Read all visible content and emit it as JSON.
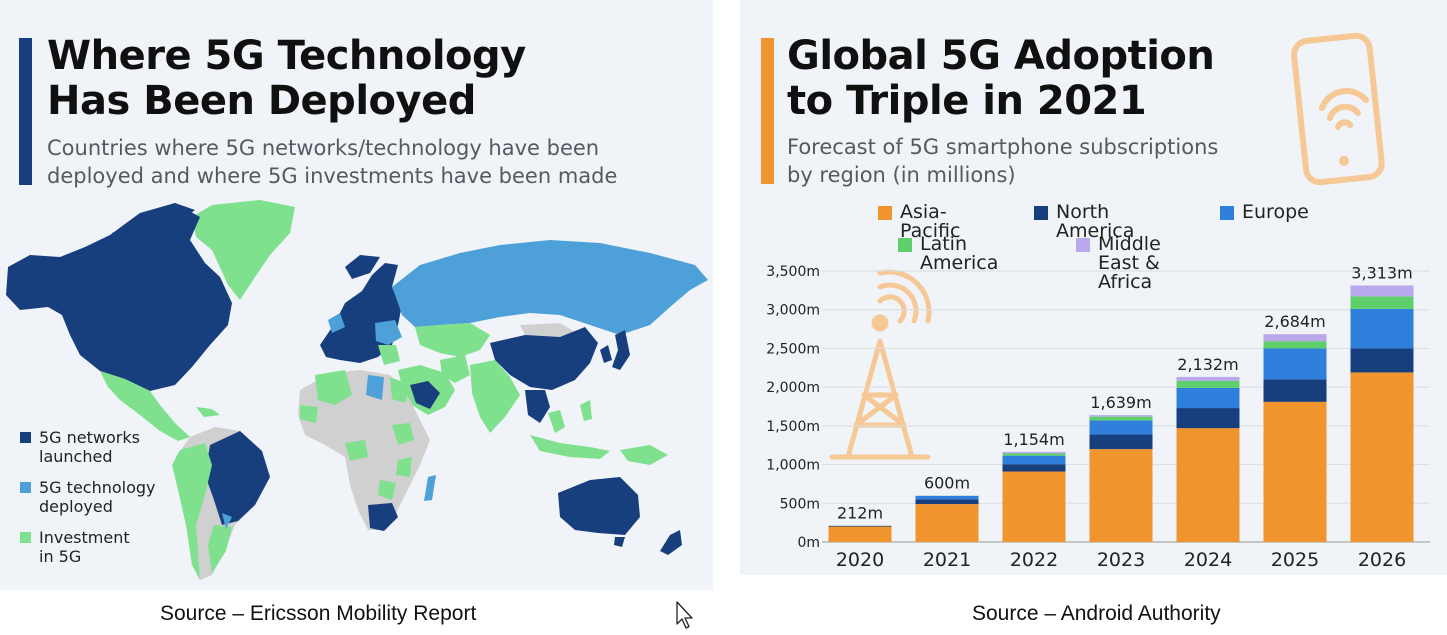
{
  "left_infographic": {
    "title_line1": "Where 5G Technology",
    "title_line2": "Has Been Deployed",
    "subtitle_line1": "Countries where 5G networks/technology have been",
    "subtitle_line2": "deployed and where 5G investments have been made",
    "accent_color": "#173f7e",
    "legend": [
      {
        "label": "5G networks launched",
        "color": "#173f7e"
      },
      {
        "label": "5G technology deployed",
        "color": "#4ea1d8"
      },
      {
        "label": "Investment in 5G",
        "color": "#7fe08e"
      }
    ],
    "source": "Source – Ericsson Mobility Report"
  },
  "right_infographic": {
    "title_line1": "Global 5G Adoption",
    "title_line2": "to Triple in 2021",
    "subtitle_line1": "Forecast of 5G smartphone subscriptions",
    "subtitle_line2": "by region (in millions)",
    "accent_color": "#f0952e",
    "source": "Source – Android Authority"
  },
  "chart_data": {
    "type": "bar",
    "stacked": true,
    "categories": [
      "2020",
      "2021",
      "2022",
      "2023",
      "2024",
      "2025",
      "2026"
    ],
    "series": [
      {
        "name": "Asia-Pacific",
        "color": "#f0952e",
        "values": [
          200,
          490,
          910,
          1200,
          1470,
          1810,
          2190
        ]
      },
      {
        "name": "North America",
        "color": "#173f7e",
        "values": [
          7,
          60,
          95,
          190,
          260,
          290,
          310
        ]
      },
      {
        "name": "Europe",
        "color": "#2f80dd",
        "values": [
          3,
          45,
          110,
          180,
          260,
          400,
          510
        ]
      },
      {
        "name": "Latin America",
        "color": "#5fcf6c",
        "values": [
          1,
          3,
          29,
          49,
          92,
          94,
          163
        ]
      },
      {
        "name": "Middle East & Africa",
        "color": "#b9a8ec",
        "values": [
          1,
          2,
          20,
          20,
          50,
          90,
          140
        ]
      }
    ],
    "totals": [
      "212m",
      "600m",
      "1,154m",
      "1,639m",
      "2,132m",
      "2,684m",
      "3,313m"
    ],
    "ylim": [
      0,
      3500
    ],
    "yticks": [
      {
        "value": 0,
        "label": "0m"
      },
      {
        "value": 500,
        "label": "500m"
      },
      {
        "value": 1000,
        "label": "1,000m"
      },
      {
        "value": 1500,
        "label": "1,500m"
      },
      {
        "value": 2000,
        "label": "2,000m"
      },
      {
        "value": 2500,
        "label": "2,500m"
      },
      {
        "value": 3000,
        "label": "3,000m"
      },
      {
        "value": 3500,
        "label": "3,500m"
      }
    ],
    "grid": true,
    "legend_position": "top"
  }
}
